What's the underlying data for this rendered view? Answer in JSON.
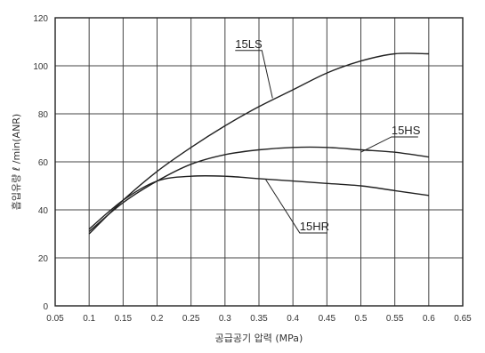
{
  "chart_data": {
    "type": "line",
    "xlabel": "공급공기 압력 (MPa)",
    "ylabel": "흡입유량 ℓ /min(ANR)",
    "xlim": [
      0.05,
      0.65
    ],
    "ylim": [
      0,
      120
    ],
    "x_ticks": [
      "0.05",
      "0.1",
      "0.15",
      "0.2",
      "0.25",
      "0.3",
      "0.35",
      "0.4",
      "0.45",
      "0.5",
      "0.55",
      "0.6",
      "0.65"
    ],
    "y_ticks": [
      "0",
      "20",
      "40",
      "60",
      "80",
      "100",
      "120"
    ],
    "grid": true,
    "series": [
      {
        "name": "15LS",
        "x": [
          0.1,
          0.15,
          0.2,
          0.25,
          0.3,
          0.35,
          0.4,
          0.45,
          0.5,
          0.55,
          0.6
        ],
        "values": [
          30,
          44,
          56,
          66,
          75,
          83,
          90,
          97,
          102,
          105,
          105
        ]
      },
      {
        "name": "15HS",
        "x": [
          0.1,
          0.15,
          0.2,
          0.25,
          0.3,
          0.35,
          0.4,
          0.45,
          0.5,
          0.55,
          0.6
        ],
        "values": [
          31,
          43,
          52,
          59,
          63,
          65,
          66,
          66,
          65,
          64,
          62
        ]
      },
      {
        "name": "15HR",
        "x": [
          0.1,
          0.15,
          0.2,
          0.25,
          0.3,
          0.35,
          0.4,
          0.45,
          0.5,
          0.55,
          0.6
        ],
        "values": [
          32,
          44,
          52,
          54,
          54,
          53,
          52,
          51,
          50,
          48,
          46
        ]
      }
    ]
  }
}
